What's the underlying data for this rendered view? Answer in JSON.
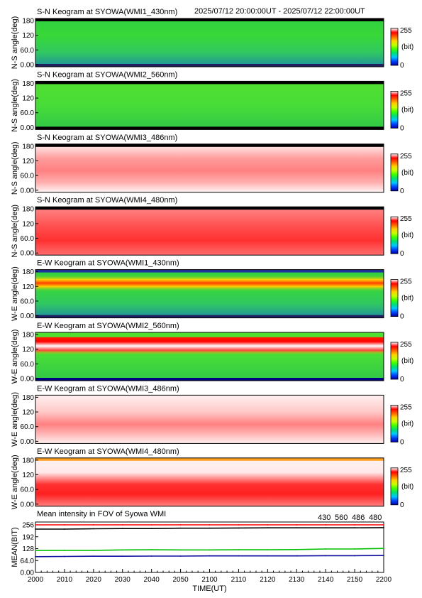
{
  "header": {
    "time_range": "2025/07/12 20:00:00UT - 2025/07/12 22:00:00UT"
  },
  "colorbar": {
    "max_label": "255",
    "unit_label": "(bit)",
    "min_label": "0",
    "gradient": [
      "#0000a0",
      "#0044ff",
      "#00c8ff",
      "#00e070",
      "#40ff00",
      "#c8ff00",
      "#ffd000",
      "#ff6000",
      "#ff0000",
      "#ffffff"
    ]
  },
  "panels": [
    {
      "title": "S-N Keogram at SYOWA(WMI1_430nm)",
      "ylabel": "N-S angle(deg)",
      "ticks": [
        "180",
        "120",
        "60.0",
        "0.00"
      ],
      "base": "green",
      "band": null,
      "top_strip": "#000000",
      "bottom_strip": "#202060"
    },
    {
      "title": "S-N Keogram at SYOWA(WMI2_560nm)",
      "ylabel": "N-S angle(deg)",
      "ticks": [
        "180",
        "120",
        "60.0",
        "0.00"
      ],
      "base": "lightgreen",
      "band": null,
      "top_strip": "#000000",
      "bottom_strip": "#000000"
    },
    {
      "title": "S-N Keogram at SYOWA(WMI3_486nm)",
      "ylabel": "N-S angle(deg)",
      "ticks": [
        "180",
        "120",
        "60.0",
        "0.00"
      ],
      "base": "lightred",
      "band": null,
      "top_strip": "#000000",
      "bottom_strip": null
    },
    {
      "title": "S-N Keogram at SYOWA(WMI4_480nm)",
      "ylabel": "N-S angle(deg)",
      "ticks": [
        "180",
        "120",
        "60.0",
        "0.00"
      ],
      "base": "red",
      "band": null,
      "top_strip": "#000000",
      "bottom_strip": null
    },
    {
      "title": "E-W Keogram at SYOWA(WMI1_430nm)",
      "ylabel": "W-E angle(deg)",
      "ticks": [
        "180",
        "120",
        "60.0",
        "0.00"
      ],
      "base": "green",
      "band": "yellow-red",
      "top_strip": "#2030a0",
      "bottom_strip": "#202060"
    },
    {
      "title": "E-W Keogram at SYOWA(WMI2_560nm)",
      "ylabel": "W-E angle(deg)",
      "ticks": [
        "180",
        "120",
        "60.0",
        "0.00"
      ],
      "base": "lightgreen",
      "band": "red-white",
      "top_strip": null,
      "bottom_strip": "#000080"
    },
    {
      "title": "E-W Keogram at SYOWA(WMI3_486nm)",
      "ylabel": "W-E angle(deg)",
      "ticks": [
        "180",
        "120",
        "60.0",
        "0.00"
      ],
      "base": "palered",
      "band": null,
      "top_strip": null,
      "bottom_strip": null
    },
    {
      "title": "E-W Keogram at SYOWA(WMI4_480nm)",
      "ylabel": "W-E angle(deg)",
      "ticks": [
        "180",
        "120",
        "60.0",
        "0.00"
      ],
      "base": "redwhite",
      "band": null,
      "top_strip": "#ffa020",
      "bottom_strip": null
    }
  ],
  "chart_data": {
    "type": "line",
    "title": "Mean intensity in FOV of Syowa WMI",
    "xlabel": "TIME(UT)",
    "ylabel": "MEAN(BIT)",
    "x_ticks": [
      "2000",
      "2010",
      "2020",
      "2030",
      "2040",
      "2050",
      "2100",
      "2110",
      "2120",
      "2130",
      "2140",
      "2150",
      "2200"
    ],
    "y_ticks": [
      "256",
      "192",
      "128",
      "64.0",
      "0.00"
    ],
    "ylim": [
      0,
      256
    ],
    "x": [
      "2000",
      "2010",
      "2020",
      "2030",
      "2040",
      "2050",
      "2100",
      "2110",
      "2120",
      "2130",
      "2140",
      "2150",
      "2200"
    ],
    "series": [
      {
        "name": "430",
        "color": "#1010a0",
        "values": [
          85,
          86,
          87,
          87,
          88,
          88,
          89,
          89,
          89,
          89,
          90,
          90,
          91
        ]
      },
      {
        "name": "560",
        "color": "#00c000",
        "values": [
          118,
          119,
          119,
          121,
          122,
          121,
          121,
          122,
          122,
          123,
          126,
          126,
          129
        ]
      },
      {
        "name": "486",
        "color": "#ff0000",
        "values": [
          256,
          256,
          256,
          256,
          256,
          256,
          256,
          256,
          256,
          256,
          256,
          256,
          256
        ]
      },
      {
        "name": "480",
        "color": "#000000",
        "values": [
          233,
          233,
          235,
          236,
          236,
          238,
          238,
          239,
          240,
          240,
          240,
          240,
          241
        ]
      }
    ]
  }
}
